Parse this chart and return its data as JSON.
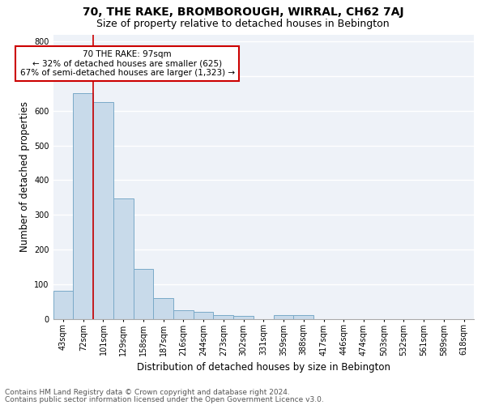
{
  "title": "70, THE RAKE, BROMBOROUGH, WIRRAL, CH62 7AJ",
  "subtitle": "Size of property relative to detached houses in Bebington",
  "xlabel": "Distribution of detached houses by size in Bebington",
  "ylabel": "Number of detached properties",
  "categories": [
    "43sqm",
    "72sqm",
    "101sqm",
    "129sqm",
    "158sqm",
    "187sqm",
    "216sqm",
    "244sqm",
    "273sqm",
    "302sqm",
    "331sqm",
    "359sqm",
    "388sqm",
    "417sqm",
    "446sqm",
    "474sqm",
    "503sqm",
    "532sqm",
    "561sqm",
    "589sqm",
    "618sqm"
  ],
  "values": [
    82,
    650,
    625,
    348,
    145,
    60,
    25,
    20,
    12,
    8,
    0,
    10,
    10,
    0,
    0,
    0,
    0,
    0,
    0,
    0,
    0
  ],
  "bar_color": "#c8daea",
  "bar_edge_color": "#7aaac8",
  "red_line_index": 2,
  "annotation_text": "70 THE RAKE: 97sqm\n← 32% of detached houses are smaller (625)\n67% of semi-detached houses are larger (1,323) →",
  "annotation_box_color": "#ffffff",
  "annotation_box_edge": "#cc0000",
  "ylim": [
    0,
    820
  ],
  "yticks": [
    0,
    100,
    200,
    300,
    400,
    500,
    600,
    700,
    800
  ],
  "footer1": "Contains HM Land Registry data © Crown copyright and database right 2024.",
  "footer2": "Contains public sector information licensed under the Open Government Licence v3.0.",
  "bg_color": "#ffffff",
  "plot_bg_color": "#eef2f8",
  "grid_color": "#ffffff",
  "title_fontsize": 10,
  "subtitle_fontsize": 9,
  "xlabel_fontsize": 8.5,
  "ylabel_fontsize": 8.5,
  "tick_fontsize": 7,
  "annotation_fontsize": 7.5,
  "footer_fontsize": 6.5
}
